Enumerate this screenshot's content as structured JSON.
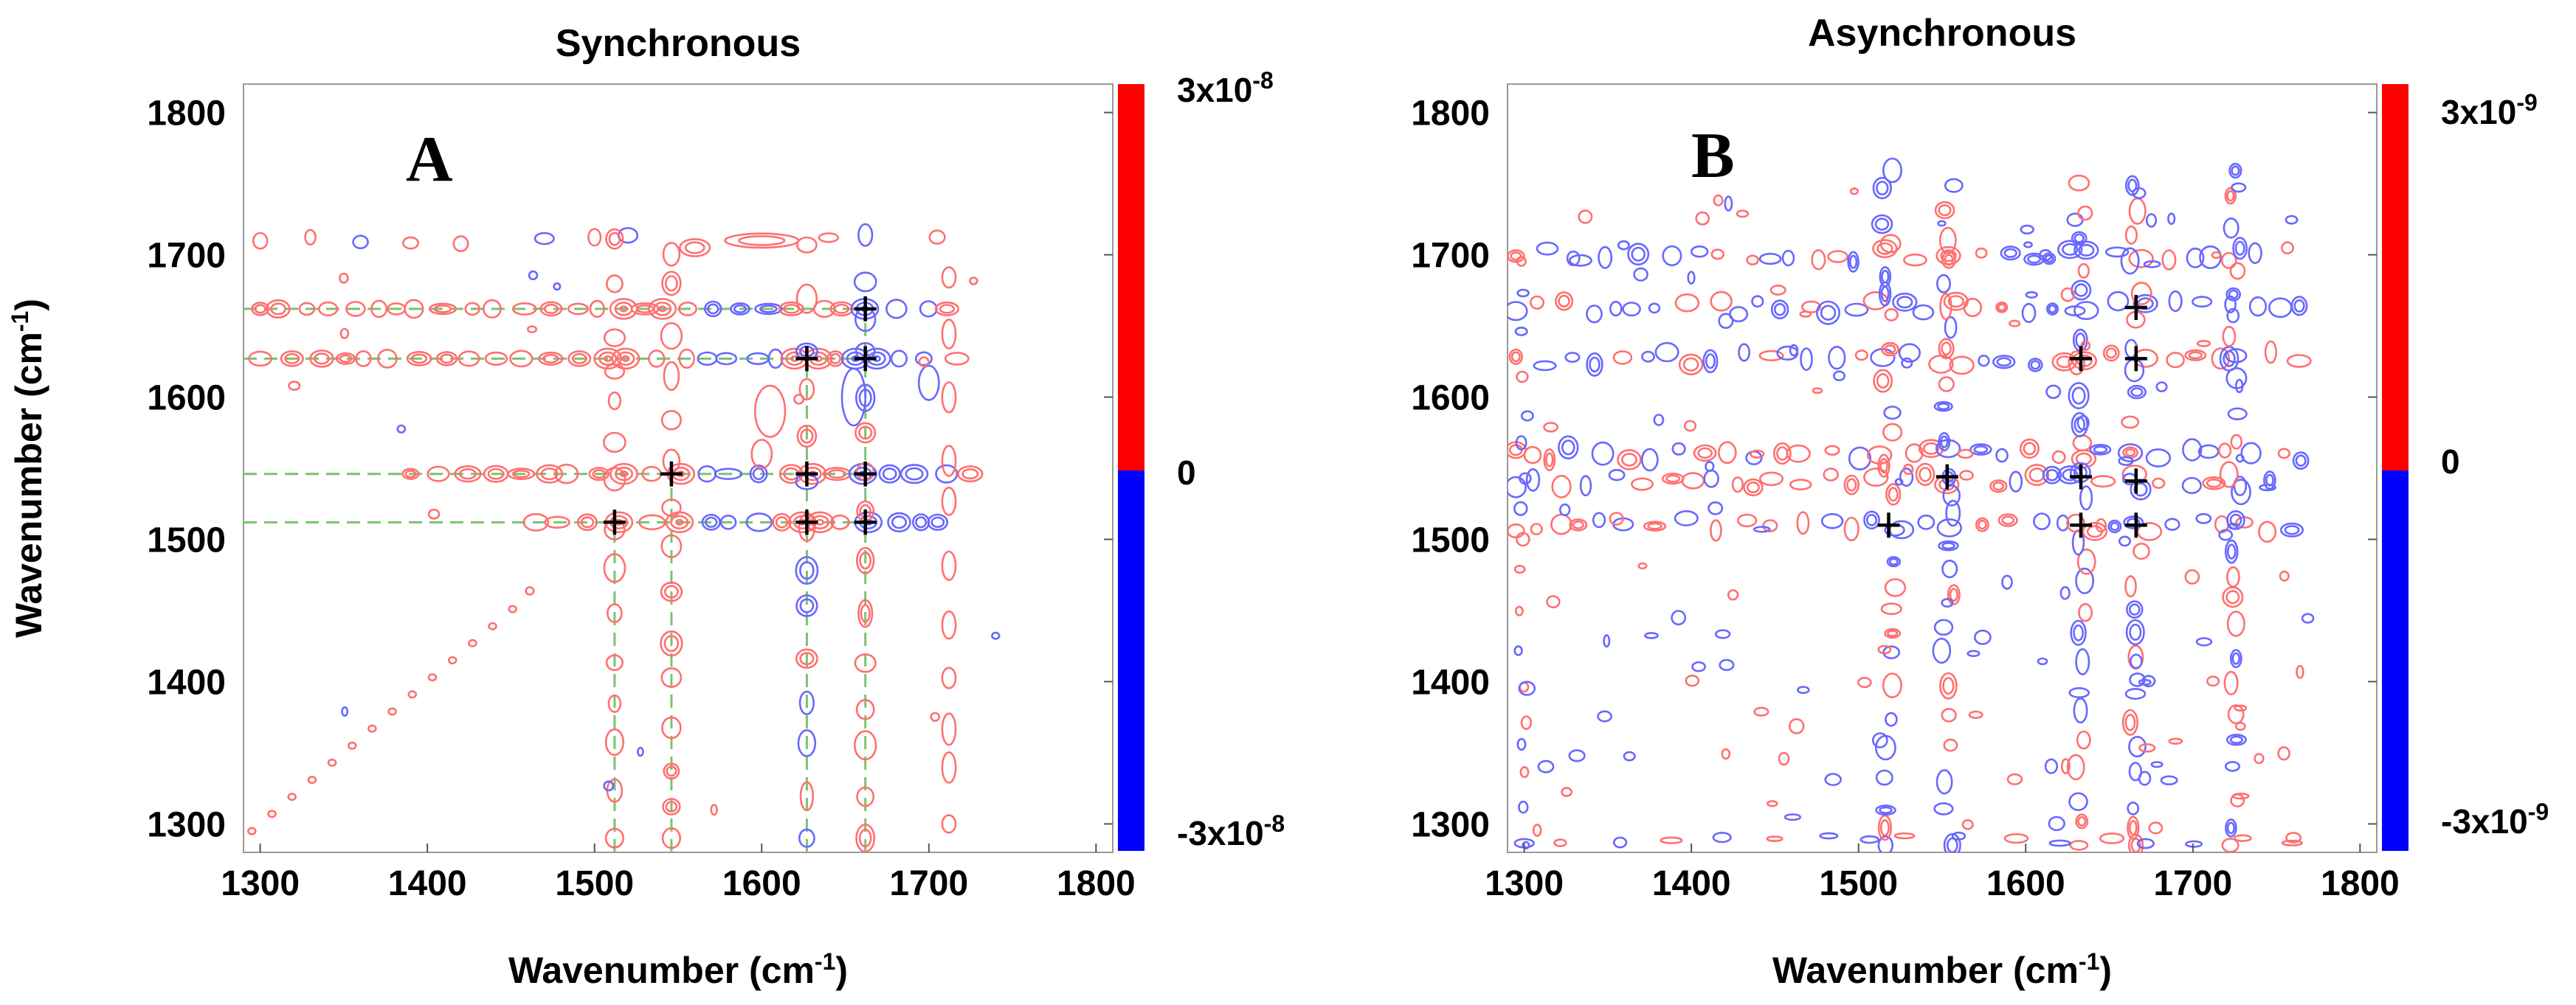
{
  "chart_data": [
    {
      "type": "heatmap",
      "subtype": "2D correlation contour map",
      "title": "Synchronous",
      "panel_label": "A",
      "xlabel": "Wavenumber (cm-1)",
      "ylabel": "Wavenumber (cm-1)",
      "xlim": [
        1290,
        1810
      ],
      "ylim": [
        1280,
        1820
      ],
      "xticks": [
        1300,
        1400,
        1500,
        1600,
        1700,
        1800
      ],
      "yticks": [
        1300,
        1400,
        1500,
        1600,
        1700,
        1800
      ],
      "xtick_labels": [
        "1300",
        "1400",
        "1500",
        "1600",
        "1700",
        "1800"
      ],
      "ytick_labels": [
        "1800",
        "1700",
        "1600",
        "1500",
        "1400",
        "1300"
      ],
      "colorbar": {
        "max_label": "3x10-8",
        "zero_label": "0",
        "min_label": "-3x10-8",
        "positive_color": "#ff0000",
        "negative_color": "#0000ff"
      },
      "positive_color": "#ff7070",
      "negative_color": "#6868ff",
      "key_bands": [
        1512,
        1546,
        1627,
        1662
      ],
      "cross_peaks": [
        {
          "x": 1627,
          "y": 1627
        },
        {
          "x": 1662,
          "y": 1662
        },
        {
          "x": 1662,
          "y": 1627
        },
        {
          "x": 1546,
          "y": 1546
        },
        {
          "x": 1627,
          "y": 1546
        },
        {
          "x": 1662,
          "y": 1546
        },
        {
          "x": 1512,
          "y": 1512
        },
        {
          "x": 1627,
          "y": 1512
        },
        {
          "x": 1662,
          "y": 1512
        }
      ],
      "guide_lines": {
        "horizontal": [
          1662,
          1627,
          1546,
          1512
        ],
        "vertical": [
          1512,
          1546,
          1627,
          1662
        ],
        "color": "#7cc26f"
      }
    },
    {
      "type": "heatmap",
      "subtype": "2D correlation contour map",
      "title": "Asynchronous",
      "panel_label": "B",
      "xlabel": "Wavenumber (cm-1)",
      "ylabel": "",
      "xlim": [
        1290,
        1810
      ],
      "ylim": [
        1280,
        1820
      ],
      "xticks": [
        1300,
        1400,
        1500,
        1600,
        1700,
        1800
      ],
      "yticks": [
        1300,
        1400,
        1500,
        1600,
        1700,
        1800
      ],
      "xtick_labels": [
        "1300",
        "1400",
        "1500",
        "1600",
        "1700",
        "1800"
      ],
      "ytick_labels": [
        "1800",
        "1700",
        "1600",
        "1500",
        "1400",
        "1300"
      ],
      "colorbar": {
        "max_label": "3x10-9",
        "zero_label": "0",
        "min_label": "-3x10-9",
        "positive_color": "#ff0000",
        "negative_color": "#0000ff"
      },
      "positive_color": "#ff7070",
      "negative_color": "#6868ff",
      "key_bands": [
        1518,
        1553,
        1633,
        1666
      ],
      "cross_peaks": [
        {
          "x": 1666,
          "y": 1663
        },
        {
          "x": 1633,
          "y": 1627
        },
        {
          "x": 1666,
          "y": 1627
        },
        {
          "x": 1553,
          "y": 1544
        },
        {
          "x": 1633,
          "y": 1544
        },
        {
          "x": 1666,
          "y": 1541
        },
        {
          "x": 1518,
          "y": 1510
        },
        {
          "x": 1633,
          "y": 1510
        },
        {
          "x": 1666,
          "y": 1510
        }
      ]
    }
  ]
}
